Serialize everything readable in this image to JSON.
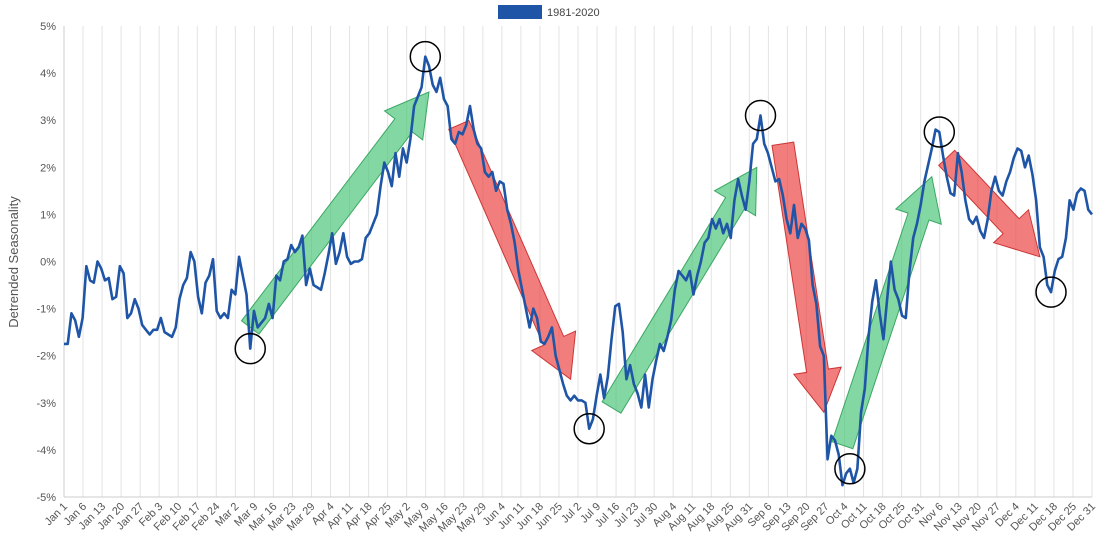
{
  "chart_data": {
    "type": "line",
    "title": "",
    "xlabel": "",
    "ylabel": "Detrended Seasonality",
    "ylim": [
      -5,
      5
    ],
    "y_ticks": [
      "-5%",
      "-4%",
      "-3%",
      "-2%",
      "-1%",
      "0%",
      "1%",
      "2%",
      "3%",
      "4%",
      "5%"
    ],
    "x_tick_labels": [
      "Jan 1",
      "Jan 6",
      "Jan 13",
      "Jan 20",
      "Jan 27",
      "Feb 3",
      "Feb 10",
      "Feb 17",
      "Feb 24",
      "Mar 2",
      "Mar 9",
      "Mar 16",
      "Mar 23",
      "Mar 29",
      "Apr 4",
      "Apr 11",
      "Apr 18",
      "Apr 25",
      "May 2",
      "May 9",
      "May 16",
      "May 23",
      "May 29",
      "Jun 4",
      "Jun 11",
      "Jun 18",
      "Jun 25",
      "Jul 2",
      "Jul 9",
      "Jul 16",
      "Jul 23",
      "Jul 30",
      "Aug 4",
      "Aug 11",
      "Aug 18",
      "Aug 25",
      "Aug 31",
      "Sep 6",
      "Sep 13",
      "Sep 20",
      "Sep 27",
      "Oct 4",
      "Oct 11",
      "Oct 18",
      "Oct 25",
      "Oct 31",
      "Nov 6",
      "Nov 13",
      "Nov 20",
      "Nov 27",
      "Dec 4",
      "Dec 11",
      "Dec 18",
      "Dec 25",
      "Dec 31"
    ],
    "grid": true,
    "legend_position": "top-center",
    "series": [
      {
        "name": "1981-2020",
        "color": "#1f55a6",
        "points": [
          [
            0,
            -1.75
          ],
          [
            1,
            -1.75
          ],
          [
            2,
            -1.1
          ],
          [
            3,
            -1.25
          ],
          [
            4,
            -1.6
          ],
          [
            5,
            -1.2
          ],
          [
            6,
            -0.1
          ],
          [
            7,
            -0.4
          ],
          [
            8,
            -0.45
          ],
          [
            9,
            0.0
          ],
          [
            10,
            -0.15
          ],
          [
            11,
            -0.4
          ],
          [
            12,
            -0.35
          ],
          [
            13,
            -0.8
          ],
          [
            14,
            -0.75
          ],
          [
            15,
            -0.1
          ],
          [
            16,
            -0.25
          ],
          [
            17,
            -1.2
          ],
          [
            18,
            -1.1
          ],
          [
            19,
            -0.8
          ],
          [
            20,
            -1.0
          ],
          [
            21,
            -1.35
          ],
          [
            22,
            -1.45
          ],
          [
            23,
            -1.55
          ],
          [
            24,
            -1.45
          ],
          [
            25,
            -1.45
          ],
          [
            26,
            -1.2
          ],
          [
            27,
            -1.5
          ],
          [
            28,
            -1.55
          ],
          [
            29,
            -1.6
          ],
          [
            30,
            -1.4
          ],
          [
            31,
            -0.8
          ],
          [
            32,
            -0.5
          ],
          [
            33,
            -0.35
          ],
          [
            34,
            0.2
          ],
          [
            35,
            0.0
          ],
          [
            36,
            -0.75
          ],
          [
            37,
            -1.1
          ],
          [
            38,
            -0.45
          ],
          [
            39,
            -0.3
          ],
          [
            40,
            0.05
          ],
          [
            41,
            -1.05
          ],
          [
            42,
            -1.2
          ],
          [
            43,
            -1.1
          ],
          [
            44,
            -1.2
          ],
          [
            45,
            -0.6
          ],
          [
            46,
            -0.7
          ],
          [
            47,
            0.1
          ],
          [
            48,
            -0.3
          ],
          [
            49,
            -0.7
          ],
          [
            50,
            -1.85
          ],
          [
            51,
            -1.05
          ],
          [
            52,
            -1.4
          ],
          [
            53,
            -1.3
          ],
          [
            54,
            -1.2
          ],
          [
            55,
            -0.9
          ],
          [
            56,
            -1.2
          ],
          [
            57,
            -0.3
          ],
          [
            58,
            -0.4
          ],
          [
            59,
            0.0
          ],
          [
            60,
            0.05
          ],
          [
            61,
            0.35
          ],
          [
            62,
            0.2
          ],
          [
            63,
            0.3
          ],
          [
            64,
            0.55
          ],
          [
            65,
            -0.5
          ],
          [
            66,
            -0.15
          ],
          [
            67,
            -0.5
          ],
          [
            68,
            -0.55
          ],
          [
            69,
            -0.6
          ],
          [
            70,
            -0.25
          ],
          [
            71,
            0.15
          ],
          [
            72,
            0.6
          ],
          [
            73,
            -0.05
          ],
          [
            74,
            0.2
          ],
          [
            75,
            0.6
          ],
          [
            76,
            0.1
          ],
          [
            77,
            -0.05
          ],
          [
            78,
            0.0
          ],
          [
            79,
            0.0
          ],
          [
            80,
            0.05
          ],
          [
            81,
            0.5
          ],
          [
            82,
            0.6
          ],
          [
            83,
            0.8
          ],
          [
            84,
            1.0
          ],
          [
            85,
            1.6
          ],
          [
            86,
            2.1
          ],
          [
            87,
            1.9
          ],
          [
            88,
            1.6
          ],
          [
            89,
            2.3
          ],
          [
            90,
            1.8
          ],
          [
            91,
            2.4
          ],
          [
            92,
            2.1
          ],
          [
            93,
            2.6
          ],
          [
            94,
            3.3
          ],
          [
            95,
            3.5
          ],
          [
            96,
            3.7
          ],
          [
            97,
            4.35
          ],
          [
            98,
            4.15
          ],
          [
            99,
            3.75
          ],
          [
            100,
            3.6
          ],
          [
            101,
            3.9
          ],
          [
            102,
            3.45
          ],
          [
            103,
            3.3
          ],
          [
            104,
            2.6
          ],
          [
            105,
            2.5
          ],
          [
            106,
            2.75
          ],
          [
            107,
            2.7
          ],
          [
            108,
            2.9
          ],
          [
            109,
            3.3
          ],
          [
            110,
            2.8
          ],
          [
            111,
            2.5
          ],
          [
            112,
            2.4
          ],
          [
            113,
            1.9
          ],
          [
            114,
            1.8
          ],
          [
            115,
            1.9
          ],
          [
            116,
            1.5
          ],
          [
            117,
            1.7
          ],
          [
            118,
            1.65
          ],
          [
            119,
            1.1
          ],
          [
            120,
            0.8
          ],
          [
            121,
            0.4
          ],
          [
            122,
            -0.2
          ],
          [
            123,
            -0.6
          ],
          [
            124,
            -1.0
          ],
          [
            125,
            -1.4
          ],
          [
            126,
            -1.0
          ],
          [
            127,
            -1.2
          ],
          [
            128,
            -1.7
          ],
          [
            129,
            -1.75
          ],
          [
            130,
            -1.6
          ],
          [
            131,
            -1.4
          ],
          [
            132,
            -2.0
          ],
          [
            133,
            -2.3
          ],
          [
            134,
            -2.6
          ],
          [
            135,
            -2.85
          ],
          [
            136,
            -2.95
          ],
          [
            137,
            -2.85
          ],
          [
            138,
            -2.95
          ],
          [
            139,
            -2.95
          ],
          [
            140,
            -3.0
          ],
          [
            141,
            -3.55
          ],
          [
            142,
            -3.35
          ],
          [
            143,
            -2.85
          ],
          [
            144,
            -2.4
          ],
          [
            145,
            -2.9
          ],
          [
            146,
            -2.45
          ],
          [
            147,
            -1.65
          ],
          [
            148,
            -0.95
          ],
          [
            149,
            -0.9
          ],
          [
            150,
            -1.5
          ],
          [
            151,
            -2.5
          ],
          [
            152,
            -2.2
          ],
          [
            153,
            -2.6
          ],
          [
            154,
            -2.8
          ],
          [
            155,
            -3.1
          ],
          [
            156,
            -2.4
          ],
          [
            157,
            -3.1
          ],
          [
            158,
            -2.5
          ],
          [
            159,
            -2.1
          ],
          [
            160,
            -1.75
          ],
          [
            161,
            -1.9
          ],
          [
            162,
            -1.6
          ],
          [
            163,
            -1.25
          ],
          [
            164,
            -0.6
          ],
          [
            165,
            -0.2
          ],
          [
            166,
            -0.3
          ],
          [
            167,
            -0.4
          ],
          [
            168,
            -0.2
          ],
          [
            169,
            -0.7
          ],
          [
            170,
            -0.3
          ],
          [
            171,
            0.0
          ],
          [
            172,
            0.4
          ],
          [
            173,
            0.5
          ],
          [
            174,
            0.9
          ],
          [
            175,
            0.7
          ],
          [
            176,
            0.9
          ],
          [
            177,
            0.6
          ],
          [
            178,
            0.8
          ],
          [
            179,
            0.5
          ],
          [
            180,
            1.3
          ],
          [
            181,
            1.75
          ],
          [
            182,
            1.4
          ],
          [
            183,
            1.1
          ],
          [
            184,
            1.7
          ],
          [
            185,
            2.5
          ],
          [
            186,
            2.6
          ],
          [
            187,
            3.1
          ],
          [
            188,
            2.5
          ],
          [
            189,
            2.3
          ],
          [
            190,
            2.0
          ],
          [
            191,
            1.7
          ],
          [
            192,
            1.75
          ],
          [
            193,
            1.4
          ],
          [
            194,
            0.9
          ],
          [
            195,
            0.6
          ],
          [
            196,
            1.2
          ],
          [
            197,
            0.5
          ],
          [
            198,
            0.8
          ],
          [
            199,
            0.7
          ],
          [
            200,
            0.45
          ],
          [
            201,
            -0.5
          ],
          [
            202,
            -0.9
          ],
          [
            203,
            -1.8
          ],
          [
            204,
            -2.0
          ],
          [
            205,
            -4.2
          ],
          [
            206,
            -3.7
          ],
          [
            207,
            -3.8
          ],
          [
            208,
            -4.1
          ],
          [
            209,
            -4.75
          ],
          [
            210,
            -4.5
          ],
          [
            211,
            -4.4
          ],
          [
            212,
            -4.7
          ],
          [
            213,
            -4.4
          ],
          [
            214,
            -3.2
          ],
          [
            215,
            -2.7
          ],
          [
            216,
            -1.6
          ],
          [
            217,
            -0.85
          ],
          [
            218,
            -0.4
          ],
          [
            219,
            -1.1
          ],
          [
            220,
            -1.65
          ],
          [
            221,
            -0.8
          ],
          [
            222,
            0.0
          ],
          [
            223,
            -0.6
          ],
          [
            224,
            -0.8
          ],
          [
            225,
            -1.15
          ],
          [
            226,
            -1.2
          ],
          [
            227,
            -0.2
          ],
          [
            228,
            0.5
          ],
          [
            229,
            0.8
          ],
          [
            230,
            1.2
          ],
          [
            231,
            1.7
          ],
          [
            232,
            2.05
          ],
          [
            233,
            2.4
          ],
          [
            234,
            2.8
          ],
          [
            235,
            2.75
          ],
          [
            236,
            2.25
          ],
          [
            237,
            1.8
          ],
          [
            238,
            1.45
          ],
          [
            239,
            1.4
          ],
          [
            240,
            2.3
          ],
          [
            241,
            1.9
          ],
          [
            242,
            1.3
          ],
          [
            243,
            0.9
          ],
          [
            244,
            0.8
          ],
          [
            245,
            0.95
          ],
          [
            246,
            0.65
          ],
          [
            247,
            0.5
          ],
          [
            248,
            0.9
          ],
          [
            249,
            1.5
          ],
          [
            250,
            1.8
          ],
          [
            251,
            1.5
          ],
          [
            252,
            1.4
          ],
          [
            253,
            1.7
          ],
          [
            254,
            1.9
          ],
          [
            255,
            2.2
          ],
          [
            256,
            2.4
          ],
          [
            257,
            2.35
          ],
          [
            258,
            2.0
          ],
          [
            259,
            2.25
          ],
          [
            260,
            1.85
          ],
          [
            261,
            1.3
          ],
          [
            262,
            0.3
          ],
          [
            263,
            0.1
          ],
          [
            264,
            -0.5
          ],
          [
            265,
            -0.65
          ],
          [
            266,
            -0.2
          ],
          [
            267,
            0.05
          ],
          [
            268,
            0.1
          ],
          [
            269,
            0.5
          ],
          [
            270,
            1.3
          ],
          [
            271,
            1.1
          ],
          [
            272,
            1.45
          ],
          [
            273,
            1.55
          ],
          [
            274,
            1.5
          ],
          [
            275,
            1.1
          ],
          [
            276,
            1.0
          ]
        ]
      }
    ],
    "x_count": 277,
    "circled_points": [
      50,
      97,
      141,
      187,
      211,
      235,
      265
    ],
    "annotations_arrows": [
      {
        "color": "green",
        "from": [
          50,
          -1.4
        ],
        "to": [
          98,
          3.6
        ]
      },
      {
        "color": "red",
        "from": [
          106,
          2.9
        ],
        "to": [
          136,
          -2.5
        ]
      },
      {
        "color": "green",
        "from": [
          147,
          -3.1
        ],
        "to": [
          186,
          2.0
        ]
      },
      {
        "color": "red",
        "from": [
          193,
          2.5
        ],
        "to": [
          204,
          -3.2
        ]
      },
      {
        "color": "green",
        "from": [
          209,
          -3.9
        ],
        "to": [
          233,
          1.8
        ]
      },
      {
        "color": "red",
        "from": [
          237,
          2.2
        ],
        "to": [
          262,
          0.1
        ]
      }
    ]
  }
}
